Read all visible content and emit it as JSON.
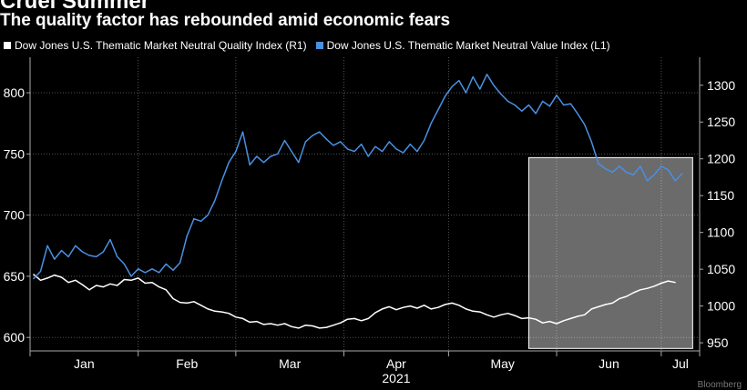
{
  "title": "Cruel Summer",
  "subtitle": "The quality factor has rebounded amid economic fears",
  "source": "Bloomberg",
  "chart_data": {
    "type": "line",
    "year_label": "2021",
    "x_ticks": [
      "Jan",
      "Feb",
      "Mar",
      "Apr",
      "May",
      "Jun",
      "Jul"
    ],
    "left_axis": {
      "ticks": [
        600,
        650,
        700,
        750,
        800
      ],
      "range": [
        589,
        829
      ]
    },
    "right_axis": {
      "ticks": [
        950,
        1000,
        1050,
        1100,
        1150,
        1200,
        1250,
        1300
      ],
      "range": [
        939,
        1338
      ]
    },
    "highlight": {
      "from_day": 143,
      "to_day": 190,
      "left_top": 747,
      "left_bottom": 591
    },
    "series": [
      {
        "name": "Dow Jones U.S. Thematic Market Neutral Quality Index",
        "axis_label": "(R1)",
        "axis": "right",
        "color": "#ffffff",
        "points": [
          [
            1,
            1043
          ],
          [
            3,
            1035
          ],
          [
            5,
            1038
          ],
          [
            7,
            1042
          ],
          [
            9,
            1039
          ],
          [
            11,
            1032
          ],
          [
            13,
            1035
          ],
          [
            15,
            1029
          ],
          [
            17,
            1022
          ],
          [
            19,
            1028
          ],
          [
            21,
            1026
          ],
          [
            23,
            1030
          ],
          [
            25,
            1028
          ],
          [
            27,
            1036
          ],
          [
            29,
            1035
          ],
          [
            31,
            1038
          ],
          [
            33,
            1031
          ],
          [
            35,
            1032
          ],
          [
            37,
            1026
          ],
          [
            39,
            1022
          ],
          [
            41,
            1010
          ],
          [
            43,
            1005
          ],
          [
            45,
            1004
          ],
          [
            47,
            1006
          ],
          [
            49,
            1001
          ],
          [
            51,
            996
          ],
          [
            53,
            993
          ],
          [
            55,
            992
          ],
          [
            57,
            990
          ],
          [
            59,
            985
          ],
          [
            61,
            983
          ],
          [
            63,
            978
          ],
          [
            65,
            979
          ],
          [
            67,
            975
          ],
          [
            69,
            976
          ],
          [
            71,
            974
          ],
          [
            73,
            976
          ],
          [
            75,
            972
          ],
          [
            77,
            970
          ],
          [
            79,
            974
          ],
          [
            81,
            973
          ],
          [
            83,
            970
          ],
          [
            85,
            971
          ],
          [
            87,
            974
          ],
          [
            89,
            977
          ],
          [
            91,
            982
          ],
          [
            93,
            983
          ],
          [
            95,
            980
          ],
          [
            97,
            983
          ],
          [
            99,
            991
          ],
          [
            101,
            996
          ],
          [
            103,
            999
          ],
          [
            105,
            995
          ],
          [
            107,
            998
          ],
          [
            109,
            1000
          ],
          [
            111,
            997
          ],
          [
            113,
            1001
          ],
          [
            115,
            996
          ],
          [
            117,
            998
          ],
          [
            119,
            1002
          ],
          [
            121,
            1004
          ],
          [
            123,
            1001
          ],
          [
            125,
            996
          ],
          [
            127,
            993
          ],
          [
            129,
            992
          ],
          [
            131,
            988
          ],
          [
            133,
            985
          ],
          [
            135,
            988
          ],
          [
            137,
            990
          ],
          [
            139,
            987
          ],
          [
            141,
            983
          ],
          [
            143,
            984
          ],
          [
            145,
            982
          ],
          [
            147,
            977
          ],
          [
            149,
            979
          ],
          [
            151,
            976
          ],
          [
            153,
            980
          ],
          [
            155,
            983
          ],
          [
            157,
            986
          ],
          [
            159,
            988
          ],
          [
            161,
            996
          ],
          [
            163,
            999
          ],
          [
            165,
            1002
          ],
          [
            167,
            1004
          ],
          [
            169,
            1010
          ],
          [
            171,
            1013
          ],
          [
            173,
            1018
          ],
          [
            175,
            1022
          ],
          [
            177,
            1024
          ],
          [
            179,
            1027
          ],
          [
            181,
            1031
          ],
          [
            183,
            1034
          ],
          [
            185,
            1032
          ]
        ]
      },
      {
        "name": "Dow Jones U.S. Thematic Market Neutral Value Index",
        "axis_label": "(L1)",
        "axis": "left",
        "color": "#4a90e2",
        "points": [
          [
            1,
            648
          ],
          [
            3,
            654
          ],
          [
            5,
            675
          ],
          [
            7,
            664
          ],
          [
            9,
            671
          ],
          [
            11,
            666
          ],
          [
            13,
            675
          ],
          [
            15,
            670
          ],
          [
            17,
            667
          ],
          [
            19,
            666
          ],
          [
            21,
            670
          ],
          [
            23,
            680
          ],
          [
            25,
            666
          ],
          [
            27,
            660
          ],
          [
            29,
            650
          ],
          [
            31,
            656
          ],
          [
            33,
            653
          ],
          [
            35,
            656
          ],
          [
            37,
            653
          ],
          [
            39,
            660
          ],
          [
            41,
            655
          ],
          [
            43,
            661
          ],
          [
            45,
            683
          ],
          [
            47,
            697
          ],
          [
            49,
            695
          ],
          [
            51,
            700
          ],
          [
            53,
            712
          ],
          [
            55,
            728
          ],
          [
            57,
            743
          ],
          [
            59,
            752
          ],
          [
            61,
            768
          ],
          [
            63,
            741
          ],
          [
            65,
            748
          ],
          [
            67,
            743
          ],
          [
            69,
            748
          ],
          [
            71,
            750
          ],
          [
            73,
            761
          ],
          [
            75,
            752
          ],
          [
            77,
            743
          ],
          [
            79,
            760
          ],
          [
            81,
            765
          ],
          [
            83,
            768
          ],
          [
            85,
            762
          ],
          [
            87,
            757
          ],
          [
            89,
            760
          ],
          [
            91,
            754
          ],
          [
            93,
            752
          ],
          [
            95,
            758
          ],
          [
            97,
            748
          ],
          [
            99,
            756
          ],
          [
            101,
            752
          ],
          [
            103,
            760
          ],
          [
            105,
            754
          ],
          [
            107,
            751
          ],
          [
            109,
            758
          ],
          [
            111,
            752
          ],
          [
            113,
            761
          ],
          [
            115,
            775
          ],
          [
            117,
            786
          ],
          [
            119,
            797
          ],
          [
            121,
            805
          ],
          [
            123,
            810
          ],
          [
            125,
            800
          ],
          [
            127,
            813
          ],
          [
            129,
            803
          ],
          [
            131,
            815
          ],
          [
            133,
            806
          ],
          [
            135,
            799
          ],
          [
            137,
            793
          ],
          [
            139,
            790
          ],
          [
            141,
            785
          ],
          [
            143,
            790
          ],
          [
            145,
            783
          ],
          [
            147,
            793
          ],
          [
            149,
            789
          ],
          [
            151,
            798
          ],
          [
            153,
            790
          ],
          [
            155,
            791
          ],
          [
            157,
            783
          ],
          [
            159,
            774
          ],
          [
            161,
            760
          ],
          [
            163,
            742
          ],
          [
            165,
            738
          ],
          [
            167,
            735
          ],
          [
            169,
            740
          ],
          [
            171,
            735
          ],
          [
            173,
            733
          ],
          [
            175,
            740
          ],
          [
            177,
            728
          ],
          [
            179,
            733
          ],
          [
            181,
            740
          ],
          [
            183,
            737
          ],
          [
            185,
            728
          ],
          [
            187,
            734
          ]
        ]
      }
    ]
  }
}
